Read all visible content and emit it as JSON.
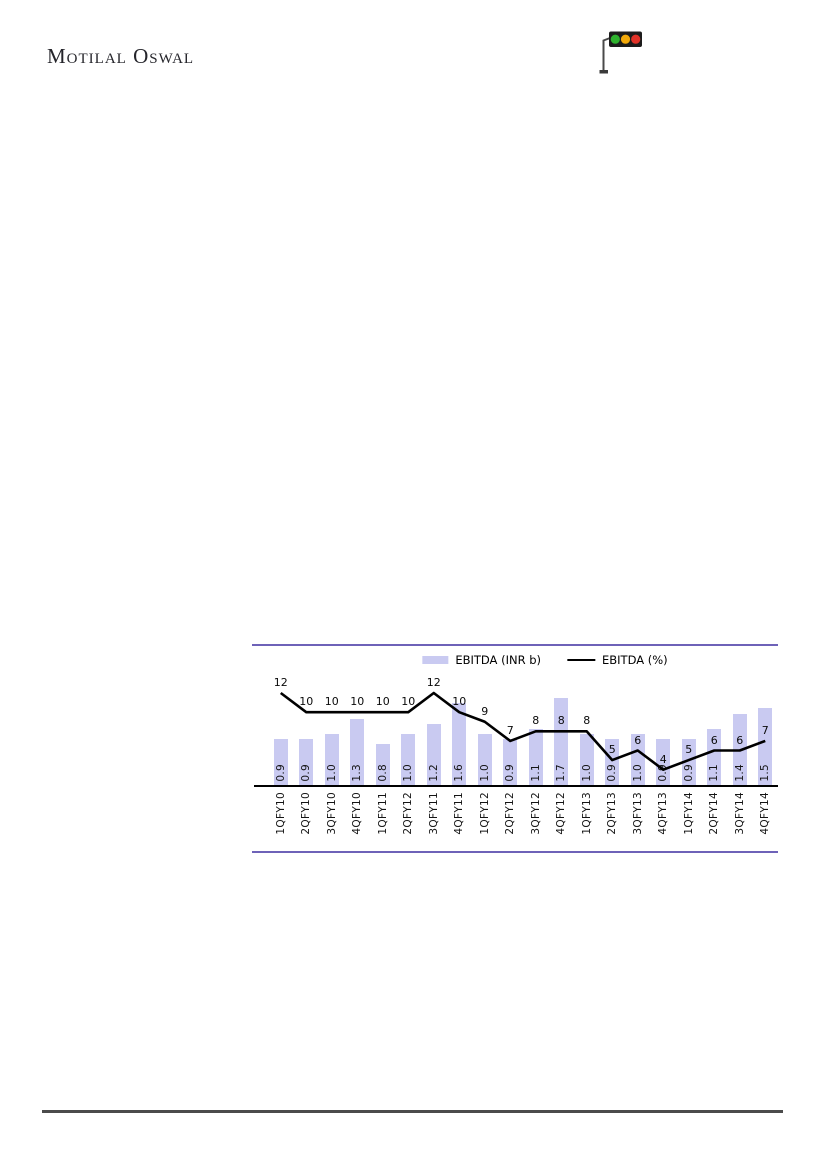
{
  "header": {
    "logo_text": "Motilal Oswal",
    "traffic_light_icon": {
      "housing_color": "#1c1c1c",
      "pole_color": "#4a4a4a",
      "light_colors": [
        "#2eb22e",
        "#f2a90a",
        "#e03228"
      ]
    }
  },
  "chart_data": {
    "type": "bar",
    "combo": "bar+line",
    "title": "",
    "xlabel": "",
    "ylabel": "",
    "legend_position": "top-center",
    "axes_hidden": true,
    "frame_color": "#6e62b8",
    "categories": [
      "1QFY10",
      "2QFY10",
      "3QFY10",
      "4QFY10",
      "1QFY11",
      "2QFY12",
      "3QFY11",
      "4QFY11",
      "1QFY12",
      "2QFY12",
      "3QFY12",
      "4QFY12",
      "1QFY13",
      "2QFY13",
      "3QFY13",
      "4QFY13",
      "1QFY14",
      "2QFY14",
      "3QFY14",
      "4QFY14"
    ],
    "series": [
      {
        "name": "EBITDA (INR b)",
        "type": "bar",
        "color": "#c9caf1",
        "axis_range": [
          0,
          2.0
        ],
        "values": [
          0.9,
          0.9,
          1.0,
          1.3,
          0.8,
          1.0,
          1.2,
          1.6,
          1.0,
          0.9,
          1.1,
          1.7,
          1.0,
          0.9,
          1.0,
          0.9,
          0.9,
          1.1,
          1.4,
          1.5
        ]
      },
      {
        "name": "EBITDA (%)",
        "type": "line",
        "color": "#000000",
        "axis_range_est": [
          2.4,
          14.4
        ],
        "values": [
          12,
          10,
          10,
          10,
          10,
          10,
          12,
          10,
          9,
          7,
          8,
          8,
          8,
          5,
          6,
          4,
          5,
          6,
          6,
          7
        ]
      }
    ]
  },
  "footer": {
    "rule_color": "#4b4b4b"
  }
}
